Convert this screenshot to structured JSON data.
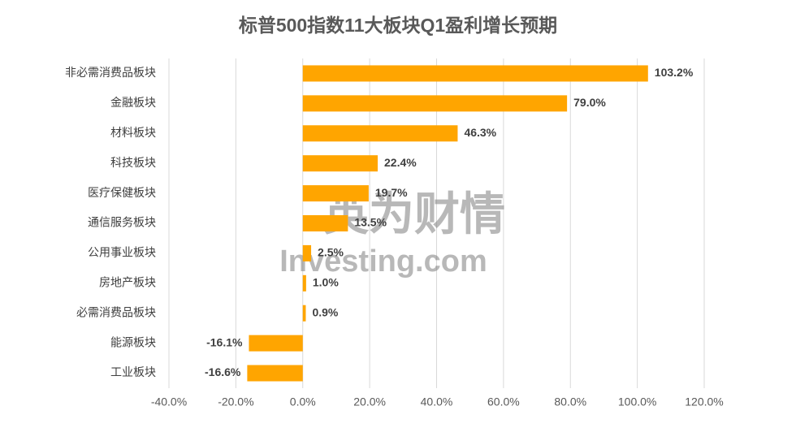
{
  "chart_data": {
    "type": "hbar",
    "title": "标普500指数11大板块Q1盈利增长预期",
    "categories": [
      "非必需消费品板块",
      "金融板块",
      "材料板块",
      "科技板块",
      "医疗保健板块",
      "通信服务板块",
      "公用事业板块",
      "房地产板块",
      "必需消费品板块",
      "能源板块",
      "工业板块"
    ],
    "values": [
      103.2,
      79.0,
      46.3,
      22.4,
      19.7,
      13.5,
      2.5,
      1.0,
      0.9,
      -16.1,
      -16.6
    ],
    "value_labels": [
      "103.2%",
      "79.0%",
      "46.3%",
      "22.4%",
      "19.7%",
      "13.5%",
      "2.5%",
      "1.0%",
      "0.9%",
      "-16.1%",
      "-16.6%"
    ],
    "color": "#ffa500",
    "xlim": [
      -40,
      120
    ],
    "xticks": [
      {
        "value": -40,
        "label": "-40.0%"
      },
      {
        "value": -20,
        "label": "-20.0%"
      },
      {
        "value": 0,
        "label": "0.0%"
      },
      {
        "value": 20,
        "label": "20.0%"
      },
      {
        "value": 40,
        "label": "40.0%"
      },
      {
        "value": 60,
        "label": "60.0%"
      },
      {
        "value": 80,
        "label": "80.0%"
      },
      {
        "value": 100,
        "label": "100.0%"
      },
      {
        "value": 120,
        "label": "120.0%"
      }
    ],
    "grid": true,
    "watermark": [
      "英为财情",
      "Investing.com"
    ]
  }
}
